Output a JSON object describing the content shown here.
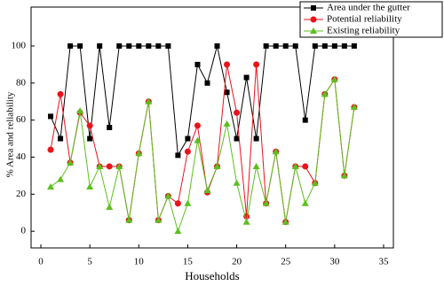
{
  "chart_data": {
    "type": "line",
    "xlabel": "Households",
    "ylabel": "% Area and reliability",
    "x": [
      1,
      2,
      3,
      4,
      5,
      6,
      7,
      8,
      9,
      10,
      11,
      12,
      13,
      14,
      15,
      16,
      17,
      18,
      19,
      20,
      21,
      22,
      23,
      24,
      25,
      26,
      27,
      28,
      29,
      30,
      31,
      32
    ],
    "series": [
      {
        "name": "Area under the gutter",
        "color": "#000000",
        "marker": "square",
        "values": [
          62,
          50,
          100,
          100,
          50,
          100,
          56,
          100,
          100,
          100,
          100,
          100,
          100,
          41,
          50,
          90,
          80,
          100,
          75,
          50,
          83,
          50,
          100,
          100,
          100,
          100,
          60,
          100,
          100,
          100,
          100,
          100
        ]
      },
      {
        "name": "Potential reliability",
        "color": "#e8141c",
        "marker": "circle",
        "values": [
          44,
          74,
          37,
          64,
          57,
          35,
          35,
          35,
          6,
          42,
          70,
          6,
          19,
          15,
          43,
          57,
          21,
          35,
          90,
          64,
          8,
          90,
          15,
          43,
          5,
          35,
          35,
          26,
          74,
          82,
          30,
          67
        ]
      },
      {
        "name": "Existing reliability",
        "color": "#5cbf1e",
        "marker": "triangle",
        "values": [
          24,
          28,
          37,
          65,
          24,
          35,
          13,
          35,
          6,
          42,
          70,
          6,
          19,
          0,
          15,
          49,
          22,
          35,
          58,
          26,
          5,
          35,
          15,
          43,
          5,
          35,
          15,
          26,
          74,
          82,
          30,
          67
        ]
      }
    ],
    "xlim": [
      -1,
      36
    ],
    "ylim": [
      -9,
      121
    ],
    "xticks": [
      0,
      5,
      10,
      15,
      20,
      25,
      30,
      35
    ],
    "yticks": [
      0,
      20,
      40,
      60,
      80,
      100
    ],
    "legend": "upper right"
  }
}
